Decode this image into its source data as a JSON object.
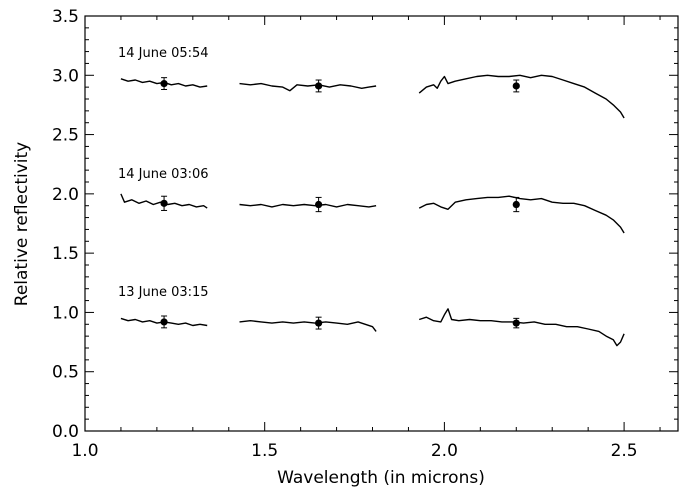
{
  "chart_data": {
    "type": "line",
    "title": "",
    "xlabel": "Wavelength (in microns)",
    "ylabel": "Relative reflectivity",
    "xlim": [
      1.0,
      2.65
    ],
    "ylim": [
      0.0,
      3.5
    ],
    "xticks": [
      1.0,
      1.5,
      2.0,
      2.5
    ],
    "xtick_labels": [
      "1.0",
      "1.5",
      "2.0",
      "2.5"
    ],
    "yticks": [
      0.0,
      0.5,
      1.0,
      1.5,
      2.0,
      2.5,
      3.0,
      3.5
    ],
    "ytick_labels": [
      "0.0",
      "0.5",
      "1.0",
      "1.5",
      "2.0",
      "2.5",
      "3.0",
      "3.5"
    ],
    "grid": false,
    "series": [
      {
        "name": "13 June 03:15",
        "segments": [
          [
            [
              1.1,
              0.95
            ],
            [
              1.12,
              0.93
            ],
            [
              1.14,
              0.94
            ],
            [
              1.16,
              0.92
            ],
            [
              1.18,
              0.93
            ],
            [
              1.2,
              0.91
            ],
            [
              1.22,
              0.92
            ],
            [
              1.24,
              0.91
            ],
            [
              1.26,
              0.9
            ],
            [
              1.28,
              0.91
            ],
            [
              1.3,
              0.89
            ],
            [
              1.32,
              0.9
            ],
            [
              1.34,
              0.89
            ]
          ],
          [
            [
              1.43,
              0.92
            ],
            [
              1.46,
              0.93
            ],
            [
              1.49,
              0.92
            ],
            [
              1.52,
              0.91
            ],
            [
              1.55,
              0.92
            ],
            [
              1.58,
              0.91
            ],
            [
              1.61,
              0.92
            ],
            [
              1.64,
              0.91
            ],
            [
              1.67,
              0.92
            ],
            [
              1.7,
              0.91
            ],
            [
              1.73,
              0.9
            ],
            [
              1.76,
              0.92
            ],
            [
              1.78,
              0.9
            ],
            [
              1.8,
              0.88
            ],
            [
              1.81,
              0.84
            ]
          ],
          [
            [
              1.93,
              0.94
            ],
            [
              1.95,
              0.96
            ],
            [
              1.97,
              0.93
            ],
            [
              1.99,
              0.92
            ],
            [
              2.0,
              0.98
            ],
            [
              2.01,
              1.03
            ],
            [
              2.02,
              0.94
            ],
            [
              2.04,
              0.93
            ],
            [
              2.07,
              0.94
            ],
            [
              2.1,
              0.93
            ],
            [
              2.13,
              0.93
            ],
            [
              2.16,
              0.92
            ],
            [
              2.19,
              0.92
            ],
            [
              2.22,
              0.91
            ],
            [
              2.25,
              0.92
            ],
            [
              2.28,
              0.9
            ],
            [
              2.31,
              0.9
            ],
            [
              2.34,
              0.88
            ],
            [
              2.37,
              0.88
            ],
            [
              2.4,
              0.86
            ],
            [
              2.43,
              0.84
            ],
            [
              2.45,
              0.8
            ],
            [
              2.47,
              0.77
            ],
            [
              2.48,
              0.72
            ],
            [
              2.49,
              0.75
            ],
            [
              2.5,
              0.82
            ]
          ]
        ],
        "points": [
          {
            "x": 1.22,
            "y": 0.92,
            "err": 0.05
          },
          {
            "x": 1.65,
            "y": 0.91,
            "err": 0.05
          },
          {
            "x": 2.2,
            "y": 0.91,
            "err": 0.04
          }
        ]
      },
      {
        "name": "14 June 03:06",
        "segments": [
          [
            [
              1.1,
              2.0
            ],
            [
              1.11,
              1.93
            ],
            [
              1.13,
              1.95
            ],
            [
              1.15,
              1.92
            ],
            [
              1.17,
              1.94
            ],
            [
              1.19,
              1.91
            ],
            [
              1.21,
              1.93
            ],
            [
              1.23,
              1.91
            ],
            [
              1.25,
              1.92
            ],
            [
              1.27,
              1.9
            ],
            [
              1.29,
              1.91
            ],
            [
              1.31,
              1.89
            ],
            [
              1.33,
              1.9
            ],
            [
              1.34,
              1.88
            ]
          ],
          [
            [
              1.43,
              1.91
            ],
            [
              1.46,
              1.9
            ],
            [
              1.49,
              1.91
            ],
            [
              1.52,
              1.89
            ],
            [
              1.55,
              1.91
            ],
            [
              1.58,
              1.9
            ],
            [
              1.61,
              1.91
            ],
            [
              1.64,
              1.9
            ],
            [
              1.67,
              1.91
            ],
            [
              1.7,
              1.89
            ],
            [
              1.73,
              1.91
            ],
            [
              1.76,
              1.9
            ],
            [
              1.79,
              1.89
            ],
            [
              1.81,
              1.9
            ]
          ],
          [
            [
              1.93,
              1.88
            ],
            [
              1.95,
              1.91
            ],
            [
              1.97,
              1.92
            ],
            [
              1.99,
              1.89
            ],
            [
              2.01,
              1.87
            ],
            [
              2.03,
              1.93
            ],
            [
              2.06,
              1.95
            ],
            [
              2.09,
              1.96
            ],
            [
              2.12,
              1.97
            ],
            [
              2.15,
              1.97
            ],
            [
              2.18,
              1.98
            ],
            [
              2.21,
              1.96
            ],
            [
              2.24,
              1.95
            ],
            [
              2.27,
              1.96
            ],
            [
              2.3,
              1.93
            ],
            [
              2.33,
              1.92
            ],
            [
              2.36,
              1.92
            ],
            [
              2.39,
              1.9
            ],
            [
              2.42,
              1.86
            ],
            [
              2.45,
              1.82
            ],
            [
              2.47,
              1.78
            ],
            [
              2.49,
              1.72
            ],
            [
              2.5,
              1.67
            ]
          ]
        ],
        "points": [
          {
            "x": 1.22,
            "y": 1.92,
            "err": 0.06
          },
          {
            "x": 1.65,
            "y": 1.91,
            "err": 0.06
          },
          {
            "x": 2.2,
            "y": 1.91,
            "err": 0.06
          }
        ]
      },
      {
        "name": "14 June 05:54",
        "segments": [
          [
            [
              1.1,
              2.97
            ],
            [
              1.12,
              2.95
            ],
            [
              1.14,
              2.96
            ],
            [
              1.16,
              2.94
            ],
            [
              1.18,
              2.95
            ],
            [
              1.2,
              2.93
            ],
            [
              1.22,
              2.94
            ],
            [
              1.24,
              2.92
            ],
            [
              1.26,
              2.93
            ],
            [
              1.28,
              2.91
            ],
            [
              1.3,
              2.92
            ],
            [
              1.32,
              2.9
            ],
            [
              1.34,
              2.91
            ]
          ],
          [
            [
              1.43,
              2.93
            ],
            [
              1.46,
              2.92
            ],
            [
              1.49,
              2.93
            ],
            [
              1.52,
              2.91
            ],
            [
              1.55,
              2.9
            ],
            [
              1.57,
              2.87
            ],
            [
              1.59,
              2.92
            ],
            [
              1.62,
              2.91
            ],
            [
              1.65,
              2.92
            ],
            [
              1.68,
              2.9
            ],
            [
              1.71,
              2.92
            ],
            [
              1.74,
              2.91
            ],
            [
              1.77,
              2.89
            ],
            [
              1.79,
              2.9
            ],
            [
              1.81,
              2.91
            ]
          ],
          [
            [
              1.93,
              2.85
            ],
            [
              1.95,
              2.9
            ],
            [
              1.97,
              2.92
            ],
            [
              1.98,
              2.89
            ],
            [
              1.99,
              2.95
            ],
            [
              2.0,
              2.99
            ],
            [
              2.01,
              2.93
            ],
            [
              2.03,
              2.95
            ],
            [
              2.06,
              2.97
            ],
            [
              2.09,
              2.99
            ],
            [
              2.12,
              3.0
            ],
            [
              2.15,
              2.99
            ],
            [
              2.18,
              2.99
            ],
            [
              2.21,
              3.0
            ],
            [
              2.24,
              2.98
            ],
            [
              2.27,
              3.0
            ],
            [
              2.3,
              2.99
            ],
            [
              2.33,
              2.96
            ],
            [
              2.36,
              2.93
            ],
            [
              2.39,
              2.9
            ],
            [
              2.42,
              2.85
            ],
            [
              2.45,
              2.8
            ],
            [
              2.47,
              2.75
            ],
            [
              2.49,
              2.69
            ],
            [
              2.5,
              2.64
            ]
          ]
        ],
        "points": [
          {
            "x": 1.22,
            "y": 2.93,
            "err": 0.05
          },
          {
            "x": 1.65,
            "y": 2.91,
            "err": 0.05
          },
          {
            "x": 2.2,
            "y": 2.91,
            "err": 0.05
          }
        ]
      }
    ]
  }
}
